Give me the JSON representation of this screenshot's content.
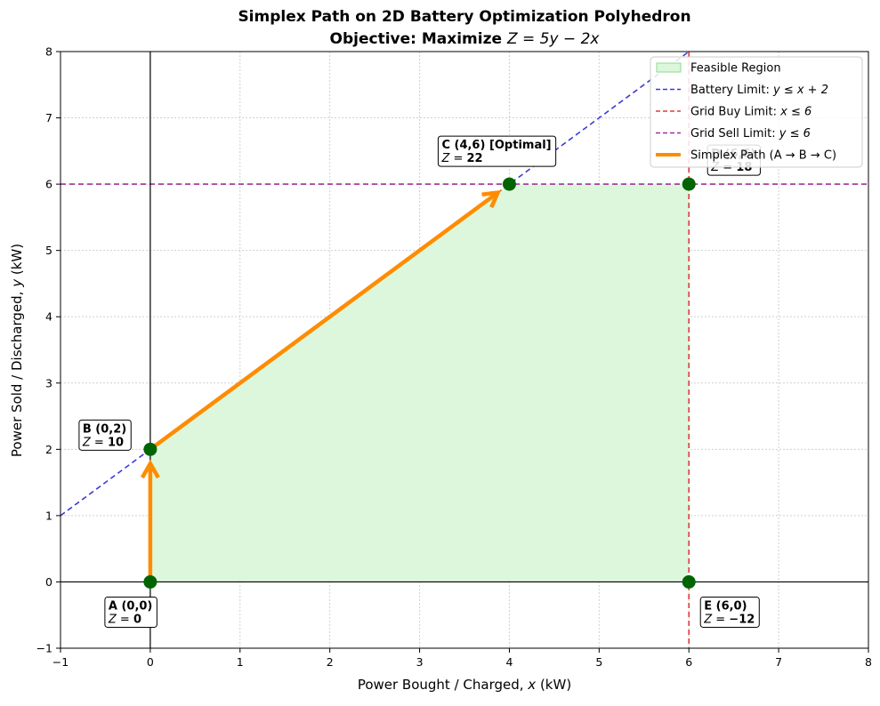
{
  "chart_data": {
    "type": "line",
    "title": "Simplex Path on 2D Battery Optimization Polyhedron",
    "subtitle_prefix": "Objective: Maximize ",
    "subtitle_math": "Z = 5y − 2x",
    "xlabel_prefix": "Power Bought / Charged, ",
    "xlabel_var": "x",
    "xlabel_suffix": " (kW)",
    "ylabel_prefix": "Power Sold / Discharged, ",
    "ylabel_var": "y",
    "ylabel_suffix": " (kW)",
    "xlim": [
      -1,
      8
    ],
    "ylim": [
      -1,
      8
    ],
    "x_ticks": [
      -1,
      0,
      1,
      2,
      3,
      4,
      5,
      6,
      7,
      8
    ],
    "y_ticks": [
      -1,
      0,
      1,
      2,
      3,
      4,
      5,
      6,
      7,
      8
    ],
    "grid": true,
    "legend_position": "top-right",
    "legend": [
      {
        "key": "feasible",
        "label": "Feasible Region",
        "math": ""
      },
      {
        "key": "battery",
        "label": "Battery Limit: ",
        "math": "y ≤ x + 2"
      },
      {
        "key": "gridbuy",
        "label": "Grid Buy Limit: ",
        "math": "x ≤ 6"
      },
      {
        "key": "gridsell",
        "label": "Grid Sell Limit: ",
        "math": "y ≤ 6"
      },
      {
        "key": "path",
        "label": "Simplex Path (A → B → C)",
        "math": ""
      }
    ],
    "feasible_region": [
      [
        0,
        0
      ],
      [
        0,
        2
      ],
      [
        4,
        6
      ],
      [
        6,
        6
      ],
      [
        6,
        0
      ]
    ],
    "constraints": [
      {
        "key": "battery",
        "type": "line",
        "equation": "y = x + 2",
        "slope": 1,
        "intercept": 2,
        "color": "#3b3bd9"
      },
      {
        "key": "gridbuy",
        "type": "vertical",
        "x": 6,
        "color": "#e03c3c"
      },
      {
        "key": "gridsell",
        "type": "horizontal",
        "y": 6,
        "color": "#a0309a"
      }
    ],
    "vertices": [
      {
        "id": "A",
        "x": 0,
        "y": 0,
        "label": "A (0,0)",
        "z_label": "Z = 0"
      },
      {
        "id": "B",
        "x": 0,
        "y": 2,
        "label": "B (0,2)",
        "z_label": "Z = 10"
      },
      {
        "id": "C",
        "x": 4,
        "y": 6,
        "label": "C (4,6) [Optimal]",
        "z_label": "Z = 22"
      },
      {
        "id": "D",
        "x": 6,
        "y": 6,
        "label": "D (6,6)",
        "z_label": "Z = 18"
      },
      {
        "id": "E",
        "x": 6,
        "y": 0,
        "label": "E (6,0)",
        "z_label": "Z = −12"
      }
    ],
    "simplex_path": [
      [
        0,
        0
      ],
      [
        0,
        2
      ],
      [
        4,
        6
      ]
    ]
  },
  "colors": {
    "feasible_fill": "#dcf7dc",
    "feasible_edge": "#8fd98f",
    "battery": "#3b3bd9",
    "gridbuy": "#e03c3c",
    "gridsell": "#a0309a",
    "path": "#ff8c00",
    "vertex": "#006400",
    "grid": "#d0d0d0"
  }
}
